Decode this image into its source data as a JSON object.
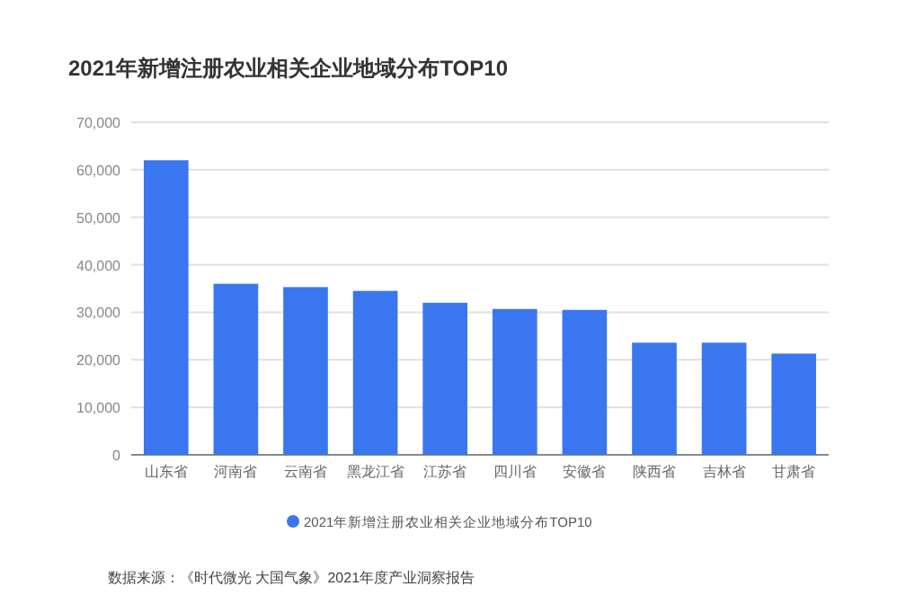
{
  "chart_data": {
    "type": "bar",
    "title": "2021年新增注册农业相关企业地域分布TOP10",
    "categories": [
      "山东省",
      "河南省",
      "云南省",
      "黑龙江省",
      "江苏省",
      "四川省",
      "安徽省",
      "陕西省",
      "吉林省",
      "甘肃省"
    ],
    "series": [
      {
        "name": "2021年新增注册农业相关企业地域分布TOP10",
        "color": "#3a76f0",
        "values": [
          62000,
          36000,
          35300,
          34500,
          32000,
          30700,
          30500,
          23600,
          23600,
          21300
        ]
      }
    ],
    "ylim": [
      0,
      70000
    ],
    "yticks": [
      {
        "value": 0,
        "label": "0"
      },
      {
        "value": 10000,
        "label": "10,000"
      },
      {
        "value": 20000,
        "label": "20,000"
      },
      {
        "value": 30000,
        "label": "30,000"
      },
      {
        "value": 40000,
        "label": "40,000"
      },
      {
        "value": 50000,
        "label": "50,000"
      },
      {
        "value": 60000,
        "label": "60,000"
      },
      {
        "value": 70000,
        "label": "70,000"
      }
    ],
    "grid": "y",
    "legend": "bottom",
    "annotations": [
      "数据来源：《时代微光 大国气象》2021年度产业洞察报告"
    ]
  }
}
